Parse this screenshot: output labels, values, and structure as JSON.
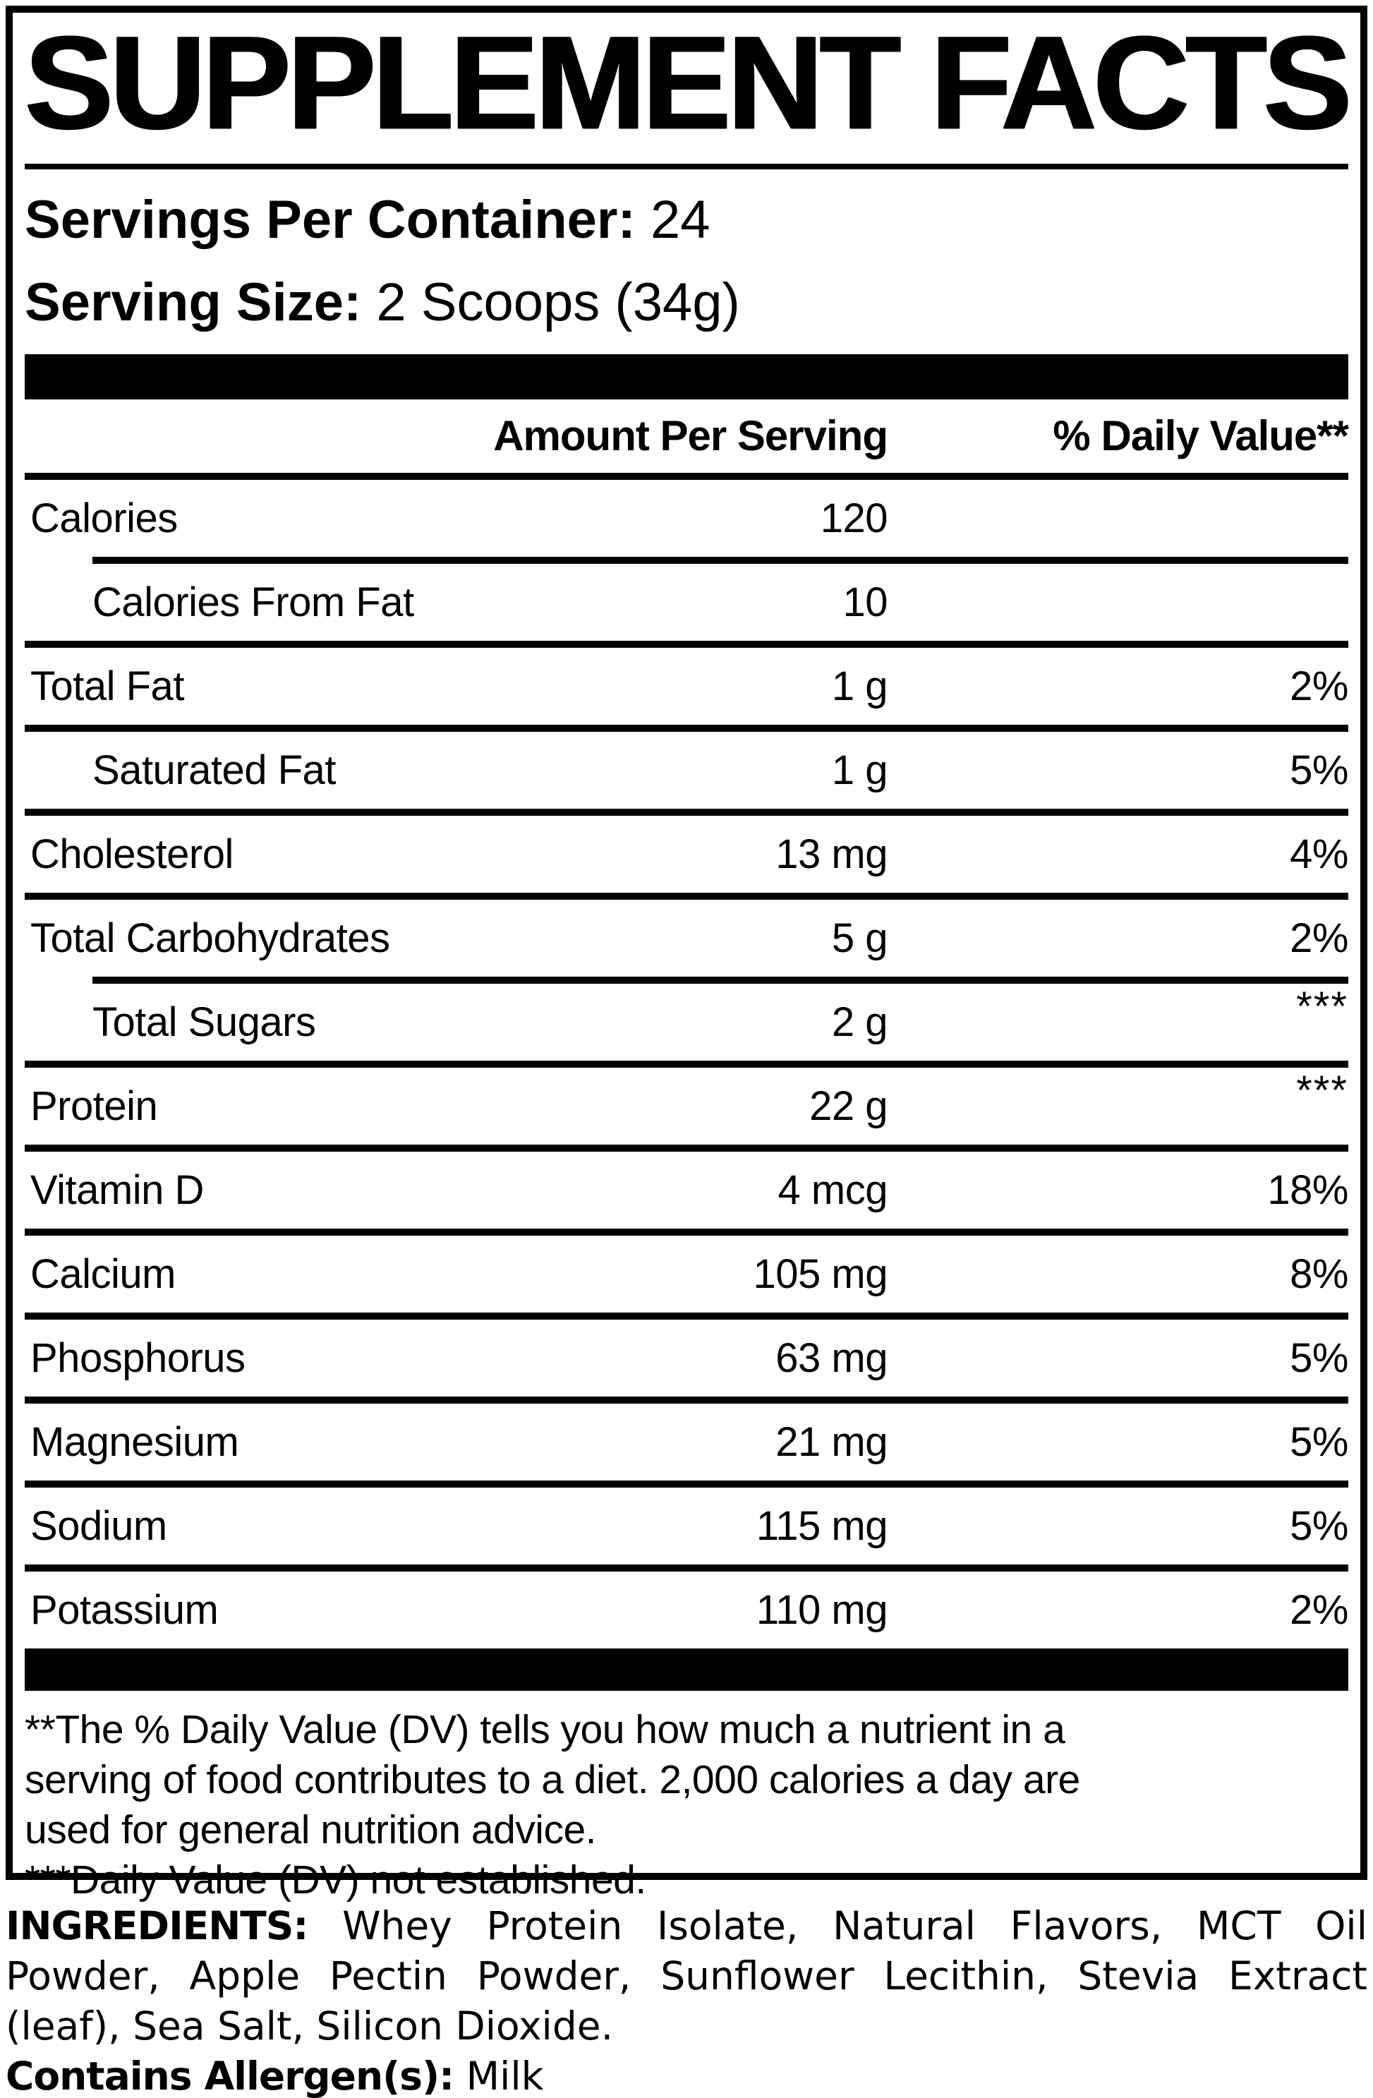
{
  "title": "SUPPLEMENT FACTS",
  "serving_info": {
    "servings_per_container_label": "Servings Per Container:",
    "servings_per_container_value": "24",
    "serving_size_label": "Serving Size:",
    "serving_size_value": "2 Scoops (34g)"
  },
  "table": {
    "headers": {
      "amount": "Amount Per Serving",
      "daily_value": "% Daily Value**"
    },
    "rows": [
      {
        "name": "Calories",
        "amount": "120",
        "dv": "",
        "indent": false,
        "divider_indent": false
      },
      {
        "name": "Calories From Fat",
        "amount": "10",
        "dv": "",
        "indent": true,
        "divider_indent": true
      },
      {
        "name": "Total Fat",
        "amount": "1 g",
        "dv": "2%",
        "indent": false,
        "divider_indent": false
      },
      {
        "name": "Saturated Fat",
        "amount": "1 g",
        "dv": "5%",
        "indent": true,
        "divider_indent": false
      },
      {
        "name": "Cholesterol",
        "amount": "13 mg",
        "dv": "4%",
        "indent": false,
        "divider_indent": false
      },
      {
        "name": "Total Carbohydrates",
        "amount": "5 g",
        "dv": "2%",
        "indent": false,
        "divider_indent": false
      },
      {
        "name": "Total Sugars",
        "amount": "2 g",
        "dv": "***",
        "indent": true,
        "divider_indent": true
      },
      {
        "name": "Protein",
        "amount": "22 g",
        "dv": "***",
        "indent": false,
        "divider_indent": false
      },
      {
        "name": "Vitamin D",
        "amount": "4 mcg",
        "dv": "18%",
        "indent": false,
        "divider_indent": false
      },
      {
        "name": "Calcium",
        "amount": "105 mg",
        "dv": "8%",
        "indent": false,
        "divider_indent": false
      },
      {
        "name": "Phosphorus",
        "amount": "63 mg",
        "dv": "5%",
        "indent": false,
        "divider_indent": false
      },
      {
        "name": "Magnesium",
        "amount": "21 mg",
        "dv": "5%",
        "indent": false,
        "divider_indent": false
      },
      {
        "name": "Sodium",
        "amount": "115 mg",
        "dv": "5%",
        "indent": false,
        "divider_indent": false
      },
      {
        "name": "Potassium",
        "amount": "110 mg",
        "dv": "2%",
        "indent": false,
        "divider_indent": false
      }
    ]
  },
  "footnotes": {
    "lines": [
      "**The % Daily Value (DV) tells you how much a nutrient in a",
      "serving of food contributes to a diet. 2,000 calories a day are",
      "used for general nutrition advice.",
      "***Daily Value (DV) not established."
    ]
  },
  "ingredients": {
    "label": "INGREDIENTS:",
    "list": "Whey Protein Isolate, Natural Flavors, MCT Oil Powder, Apple Pectin Powder, Sunflower Lecithin, Stevia Extract (leaf), Sea Salt, Silicon Dioxide.",
    "allergen_label": "Contains Allergen(s):",
    "allergen_value": "Milk"
  },
  "colors": {
    "text": "#000000",
    "background": "#ffffff"
  }
}
